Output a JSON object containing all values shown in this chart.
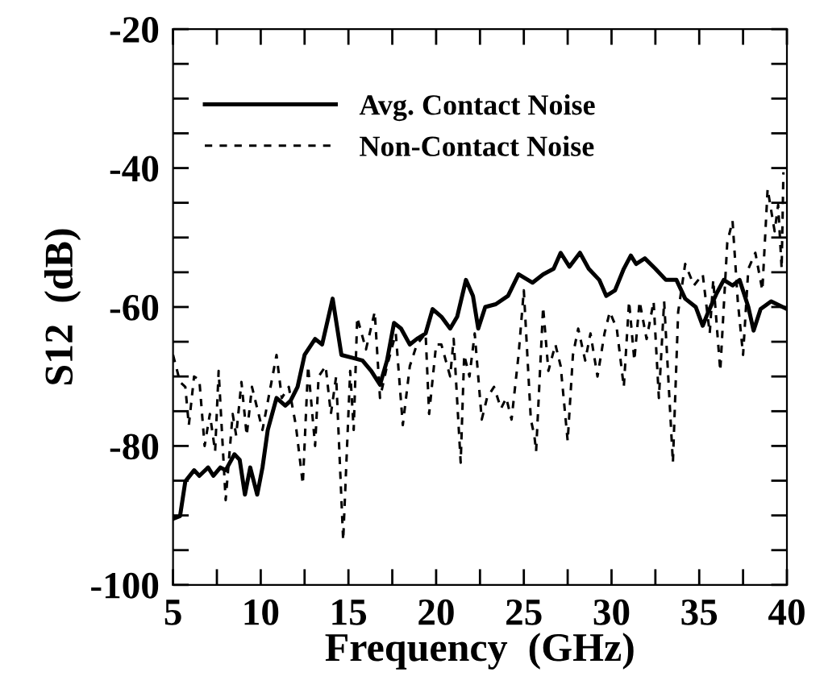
{
  "chart_data": {
    "type": "line",
    "xlabel": "Frequency  (GHz)",
    "ylabel": "S12  (dB)",
    "xlim": [
      5,
      40
    ],
    "ylim": [
      -100,
      -20
    ],
    "xticks": [
      5,
      {
        "value": 7.5,
        "label": null
      },
      10,
      {
        "value": 12.5,
        "label": null
      },
      15,
      {
        "value": 17.5,
        "label": null
      },
      20,
      {
        "value": 22.5,
        "label": null
      },
      25,
      {
        "value": 27.5,
        "label": null
      },
      30,
      {
        "value": 32.5,
        "label": null
      },
      35,
      {
        "value": 37.5,
        "label": null
      },
      40
    ],
    "yticks": [
      -100,
      {
        "value": -95,
        "label": null
      },
      {
        "value": -90,
        "label": null
      },
      {
        "value": -85,
        "label": null
      },
      -80,
      {
        "value": -75,
        "label": null
      },
      {
        "value": -70,
        "label": null
      },
      {
        "value": -65,
        "label": null
      },
      -60,
      {
        "value": -55,
        "label": null
      },
      {
        "value": -50,
        "label": null
      },
      {
        "value": -45,
        "label": null
      },
      -40,
      {
        "value": -35,
        "label": null
      },
      {
        "value": -30,
        "label": null
      },
      {
        "value": -25,
        "label": null
      },
      -20
    ],
    "grid": false,
    "legend": "top",
    "marker": "none",
    "series": [
      {
        "name": "Avg. Contact Noise",
        "color": "#000000",
        "line_style": "solid",
        "x": [
          5,
          5.4,
          5.7,
          6.2,
          6.5,
          7.0,
          7.3,
          7.7,
          8.0,
          8.5,
          8.8,
          9.1,
          9.4,
          9.8,
          10.1,
          10.4,
          10.9,
          11.4,
          11.7,
          12.1,
          12.5,
          13.1,
          13.5,
          14.1,
          14.6,
          15.2,
          15.8,
          16.3,
          16.8,
          17.2,
          17.6,
          18.0,
          18.5,
          18.9,
          19.4,
          19.8,
          20.3,
          20.8,
          21.2,
          21.7,
          22.1,
          22.4,
          22.8,
          23.4,
          24.1,
          24.7,
          25.5,
          26.1,
          26.7,
          27.1,
          27.6,
          28.2,
          28.7,
          29.3,
          29.7,
          30.2,
          30.7,
          31.1,
          31.4,
          31.9,
          32.5,
          33.1,
          33.7,
          34.2,
          34.8,
          35.2,
          35.5,
          36.0,
          36.4,
          36.9,
          37.3,
          37.8,
          38.1,
          38.5,
          39.1,
          40
        ],
        "values": [
          -90.5,
          -90.1,
          -85.1,
          -83.5,
          -84.3,
          -83.1,
          -84.3,
          -83.1,
          -83.5,
          -81.2,
          -82,
          -87,
          -83.1,
          -87,
          -83.1,
          -77.7,
          -73.1,
          -74.2,
          -73.5,
          -71.5,
          -66.9,
          -64.6,
          -65.4,
          -58.8,
          -66.9,
          -67.3,
          -67.7,
          -69.2,
          -71.2,
          -67.7,
          -62.3,
          -63.1,
          -65.4,
          -64.6,
          -63.8,
          -60.3,
          -61.4,
          -63.1,
          -61.4,
          -56.1,
          -58.4,
          -63.1,
          -60,
          -59.6,
          -58.4,
          -55.3,
          -56.5,
          -55.3,
          -54.5,
          -52.2,
          -54.2,
          -52.2,
          -54.5,
          -56.1,
          -58.4,
          -57.6,
          -54.5,
          -52.6,
          -53.8,
          -53,
          -54.5,
          -56.1,
          -56.1,
          -58.8,
          -60,
          -62.7,
          -60.8,
          -58,
          -56.1,
          -56.9,
          -56.1,
          -60,
          -63.4,
          -60.3,
          -59.2,
          -60.3
        ]
      },
      {
        "name": "Non-Contact Noise",
        "color": "#000000",
        "line_style": "dashed",
        "x": [
          5,
          5.4,
          5.7,
          5.9,
          6.2,
          6.5,
          6.8,
          7.1,
          7.4,
          7.6,
          8.0,
          8.4,
          8.6,
          8.9,
          9.2,
          9.5,
          9.8,
          10.1,
          10.5,
          10.9,
          11.2,
          11.6,
          12.0,
          12.4,
          12.7,
          13.1,
          13.3,
          13.7,
          14.0,
          14.3,
          14.7,
          15.1,
          15.3,
          15.5,
          16.0,
          16.5,
          16.8,
          17.2,
          17.7,
          18.1,
          18.5,
          18.9,
          19.4,
          19.6,
          20.0,
          20.3,
          20.8,
          21.0,
          21.4,
          21.6,
          21.9,
          22.2,
          22.6,
          22.9,
          23.3,
          23.7,
          24.0,
          24.3,
          24.7,
          25.0,
          25.4,
          25.6,
          25.7,
          26.1,
          26.4,
          26.8,
          27.1,
          27.5,
          27.8,
          28.1,
          28.5,
          28.8,
          29.2,
          29.6,
          29.9,
          30.3,
          30.7,
          31.0,
          31.3,
          31.6,
          32.0,
          32.4,
          32.7,
          33.0,
          33.5,
          33.8,
          34.2,
          34.7,
          35.2,
          35.6,
          35.8,
          36.2,
          36.6,
          36.9,
          37.2,
          37.5,
          37.8,
          38.2,
          38.6,
          38.9,
          39.3,
          39.5,
          39.7,
          39.8
        ],
        "values": [
          -66.9,
          -70.8,
          -71.5,
          -77,
          -70,
          -70.5,
          -80,
          -75.4,
          -80.8,
          -69.2,
          -87.8,
          -75.4,
          -78.5,
          -70.8,
          -78.5,
          -71.5,
          -74.6,
          -77.7,
          -72.3,
          -66.9,
          -73.1,
          -71.5,
          -77,
          -85.5,
          -68.5,
          -80,
          -70,
          -68.5,
          -75.4,
          -70,
          -93.6,
          -69.2,
          -77.7,
          -61.5,
          -66.1,
          -60.7,
          -73.1,
          -68.5,
          -63.8,
          -77,
          -68.5,
          -65.4,
          -63.8,
          -75.4,
          -65.4,
          -65.4,
          -70,
          -64.6,
          -82.4,
          -66.9,
          -70,
          -63.8,
          -76.2,
          -73.1,
          -71.5,
          -74.6,
          -73.1,
          -76.2,
          -66.9,
          -57.6,
          -76.2,
          -78.5,
          -80.8,
          -60,
          -69.2,
          -65.4,
          -68.5,
          -79.3,
          -66.9,
          -63.1,
          -67.7,
          -63.8,
          -70,
          -63.8,
          -60.7,
          -63.1,
          -71.5,
          -59.2,
          -67.7,
          -59.2,
          -64.6,
          -59.2,
          -73.1,
          -59.2,
          -82.4,
          -60.7,
          -53.8,
          -56.9,
          -55.3,
          -63.8,
          -56.1,
          -69.2,
          -50.7,
          -47.6,
          -59.2,
          -66.9,
          -54.5,
          -52.2,
          -57.6,
          -43,
          -49.1,
          -45.3,
          -54.5,
          -40.6
        ]
      }
    ]
  }
}
